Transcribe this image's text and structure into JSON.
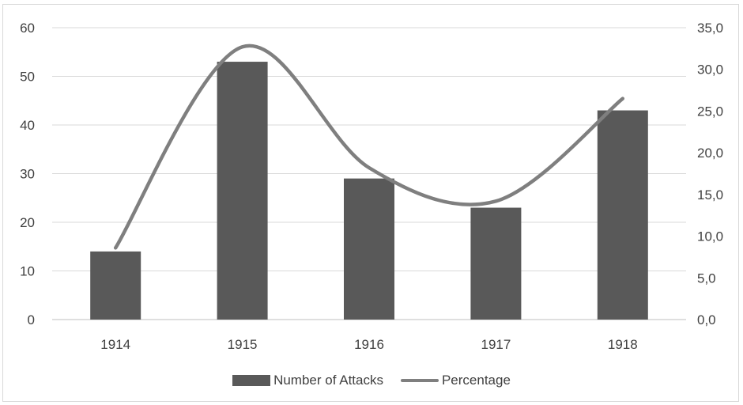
{
  "chart_data": {
    "type": "bar",
    "categories": [
      "1914",
      "1915",
      "1916",
      "1917",
      "1918"
    ],
    "series": [
      {
        "name": "Number of Attacks",
        "type": "bar",
        "axis": "left",
        "values": [
          14,
          53,
          29,
          23,
          43
        ],
        "color": "#595959"
      },
      {
        "name": "Percentage",
        "type": "line",
        "axis": "right",
        "smooth": true,
        "values": [
          8.6,
          32.7,
          18.2,
          14.2,
          26.5
        ],
        "color": "#7f7f7f"
      }
    ],
    "y_left": {
      "min": 0,
      "max": 60,
      "ticks": [
        "0",
        "10",
        "20",
        "30",
        "40",
        "50",
        "60"
      ]
    },
    "y_right": {
      "min": 0,
      "max": 35,
      "ticks": [
        "0,0",
        "5,0",
        "10,0",
        "15,0",
        "20,0",
        "25,0",
        "30,0",
        "35,0"
      ]
    },
    "grid": true,
    "legend_position": "bottom",
    "gridline_color": "#d9d9d9",
    "axis_color": "#bfbfbf"
  }
}
